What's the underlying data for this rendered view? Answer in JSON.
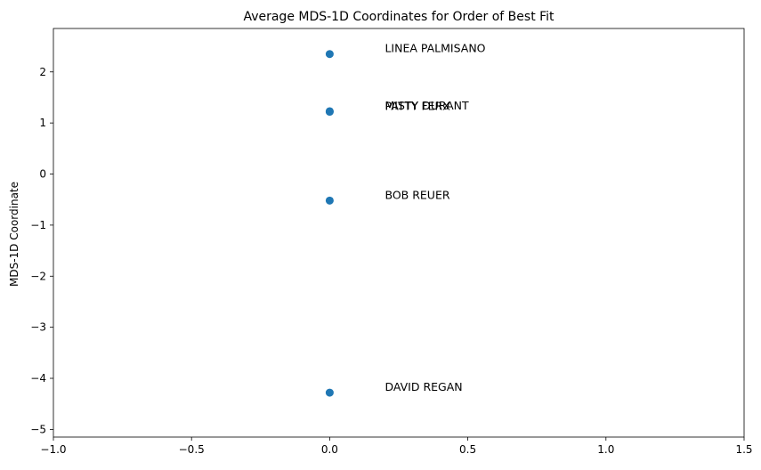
{
  "chart_data": {
    "type": "scatter",
    "title": "Average MDS-1D Coordinates for Order of Best Fit",
    "xlabel": "",
    "ylabel": "MDS-1D Coordinate",
    "xlim": [
      -1.0,
      1.5
    ],
    "ylim": [
      -5.15,
      2.85
    ],
    "xticks": [
      -1.0,
      -0.5,
      0.0,
      0.5,
      1.0,
      1.5
    ],
    "xtick_labels": [
      "−1.0",
      "−0.5",
      "0.0",
      "0.5",
      "1.0",
      "1.5"
    ],
    "yticks": [
      -5,
      -4,
      -3,
      -2,
      -1,
      0,
      1,
      2
    ],
    "ytick_labels": [
      "−5",
      "−4",
      "−3",
      "−2",
      "−1",
      "0",
      "1",
      "2"
    ],
    "grid": false,
    "marker_color": "#1f77b4",
    "points": [
      {
        "label": "LINEA PALMISANO",
        "x": 0.0,
        "y": 2.35
      },
      {
        "label": "MISTY DURANT",
        "x": 0.0,
        "y": 1.23
      },
      {
        "label": "PATTY FERX",
        "x": 0.0,
        "y": 1.22
      },
      {
        "label": "BOB REUER",
        "x": 0.0,
        "y": -0.52
      },
      {
        "label": "DAVID REGAN",
        "x": 0.0,
        "y": -4.28
      }
    ],
    "label_x": 0.2
  }
}
